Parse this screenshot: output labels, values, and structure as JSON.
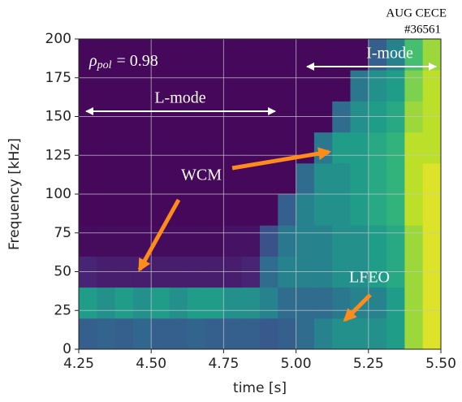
{
  "chart_data": {
    "type": "heatmap",
    "header": [
      "AUG CECE",
      "#36561"
    ],
    "xlabel": "time [s]",
    "ylabel": "Frequency [kHz]",
    "annotations": {
      "rho": {
        "symbol": "ρ",
        "subscript": "pol",
        "text": "= 0.98"
      },
      "lmode": "L-mode",
      "imode": "I-mode",
      "wcm": "WCM",
      "lfeo": "LFEO"
    },
    "xlim": [
      4.25,
      5.5
    ],
    "ylim": [
      0,
      200
    ],
    "xticks": [
      4.25,
      {
        "value": 4.5,
        "label": "4.50"
      },
      4.75,
      {
        "value": 5,
        "label": "5.00"
      },
      5.25,
      {
        "value": 5.5,
        "label": "5.50"
      }
    ],
    "yticks": [
      0,
      25,
      50,
      75,
      100,
      125,
      150,
      175,
      200
    ],
    "grid": true,
    "colormap": [
      "#440154",
      "#482878",
      "#3e4989",
      "#31688e",
      "#26828e",
      "#1f9e89",
      "#35b779",
      "#6ece58",
      "#b5de2b",
      "#fde725"
    ],
    "x_bins": [
      4.25,
      4.3125,
      4.375,
      4.4375,
      4.5,
      4.5625,
      4.625,
      4.6875,
      4.75,
      4.8125,
      4.875,
      4.9375,
      5.0,
      5.0625,
      5.125,
      5.1875,
      5.25,
      5.3125,
      5.375,
      5.4375,
      5.5
    ],
    "y_bins": [
      0,
      20,
      40,
      60,
      80,
      100,
      120,
      140,
      160,
      180,
      200
    ],
    "z": [
      [
        0.3,
        0.32,
        0.3,
        0.33,
        0.3,
        0.3,
        0.32,
        0.3,
        0.3,
        0.3,
        0.28,
        0.3,
        0.35,
        0.45,
        0.5,
        0.5,
        0.5,
        0.55,
        0.85,
        0.95
      ],
      [
        0.55,
        0.5,
        0.55,
        0.5,
        0.55,
        0.5,
        0.55,
        0.55,
        0.5,
        0.5,
        0.45,
        0.35,
        0.35,
        0.35,
        0.4,
        0.45,
        0.45,
        0.55,
        0.85,
        0.95
      ],
      [
        0.1,
        0.08,
        0.08,
        0.08,
        0.08,
        0.08,
        0.08,
        0.08,
        0.08,
        0.1,
        0.35,
        0.45,
        0.45,
        0.45,
        0.5,
        0.5,
        0.55,
        0.6,
        0.85,
        0.95
      ],
      [
        0.03,
        0.03,
        0.03,
        0.03,
        0.03,
        0.03,
        0.03,
        0.03,
        0.05,
        0.05,
        0.25,
        0.4,
        0.45,
        0.45,
        0.5,
        0.5,
        0.55,
        0.6,
        0.85,
        0.95
      ],
      [
        0.02,
        0.02,
        0.02,
        0.02,
        0.02,
        0.02,
        0.02,
        0.02,
        0.02,
        0.02,
        0.02,
        0.3,
        0.45,
        0.5,
        0.5,
        0.55,
        0.6,
        0.65,
        0.9,
        0.95
      ],
      [
        0.02,
        0.02,
        0.02,
        0.02,
        0.02,
        0.02,
        0.02,
        0.02,
        0.02,
        0.02,
        0.02,
        0.02,
        0.35,
        0.5,
        0.5,
        0.55,
        0.6,
        0.65,
        0.9,
        0.95
      ],
      [
        0.02,
        0.02,
        0.02,
        0.02,
        0.02,
        0.02,
        0.02,
        0.02,
        0.02,
        0.02,
        0.02,
        0.02,
        0.02,
        0.4,
        0.55,
        0.55,
        0.6,
        0.65,
        0.9,
        0.9
      ],
      [
        0.02,
        0.02,
        0.02,
        0.02,
        0.02,
        0.02,
        0.02,
        0.02,
        0.02,
        0.02,
        0.02,
        0.02,
        0.02,
        0.02,
        0.35,
        0.5,
        0.55,
        0.6,
        0.85,
        0.9
      ],
      [
        0.02,
        0.02,
        0.02,
        0.02,
        0.02,
        0.02,
        0.02,
        0.02,
        0.02,
        0.02,
        0.02,
        0.02,
        0.02,
        0.02,
        0.02,
        0.4,
        0.5,
        0.55,
        0.8,
        0.9
      ],
      [
        0.02,
        0.02,
        0.02,
        0.02,
        0.02,
        0.02,
        0.02,
        0.02,
        0.02,
        0.02,
        0.02,
        0.02,
        0.02,
        0.02,
        0.02,
        0.02,
        0.3,
        0.45,
        0.7,
        0.85
      ]
    ]
  }
}
